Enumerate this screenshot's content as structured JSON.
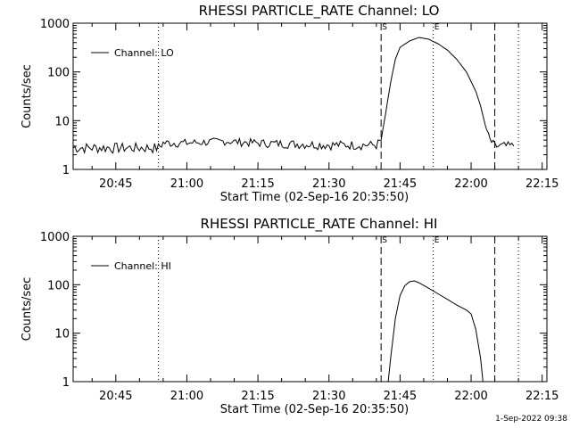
{
  "footer": {
    "timestamp": "1-Sep-2022 09:38"
  },
  "chart_data": [
    {
      "type": "line",
      "title": "RHESSI PARTICLE_RATE Channel: LO",
      "xlabel": "Start Time (02-Sep-16 20:35:50)",
      "ylabel": "Counts/sec",
      "yscale": "log",
      "ylim": [
        1,
        1000
      ],
      "xlim": [
        "20:36",
        "22:16"
      ],
      "x_ticks": [
        "20:45",
        "21:00",
        "21:15",
        "21:30",
        "21:45",
        "22:00",
        "22:15"
      ],
      "y_ticks": [
        "1",
        "10",
        "100",
        "1000"
      ],
      "legend": {
        "label": "Channel: LO",
        "placement": "top-left"
      },
      "markers": [
        {
          "label": "S",
          "time": "21:41",
          "style": "dashed"
        },
        {
          "label": "E",
          "time": "21:52",
          "style": "dotted"
        }
      ],
      "vlines": [
        {
          "time": "20:54",
          "style": "dotted"
        },
        {
          "time": "22:05",
          "style": "dashed"
        },
        {
          "time": "22:10",
          "style": "dotted"
        }
      ],
      "series": [
        {
          "pattern": "noisy",
          "points": [
            [
              "20:36",
              2.8
            ],
            [
              "20:54",
              2.8
            ],
            [
              "20:55",
              3.5
            ],
            [
              "21:00",
              3.5
            ],
            [
              "21:08",
              3.8
            ],
            [
              "21:15",
              3.5
            ],
            [
              "21:30",
              3.2
            ],
            [
              "21:40",
              3.2
            ],
            [
              "21:41",
              4
            ],
            [
              "21:42",
              15
            ],
            [
              "21:43",
              60
            ],
            [
              "21:44",
              180
            ],
            [
              "21:45",
              320
            ],
            [
              "21:47",
              430
            ],
            [
              "21:49",
              510
            ],
            [
              "21:51",
              470
            ],
            [
              "21:53",
              380
            ],
            [
              "21:55",
              280
            ],
            [
              "21:57",
              180
            ],
            [
              "21:59",
              100
            ],
            [
              "22:01",
              40
            ],
            [
              "22:02",
              20
            ],
            [
              "22:03",
              8
            ],
            [
              "22:04",
              4
            ],
            [
              "22:05",
              3
            ],
            [
              "22:09",
              3
            ]
          ]
        }
      ]
    },
    {
      "type": "line",
      "title": "RHESSI PARTICLE_RATE Channel: HI",
      "xlabel": "Start Time (02-Sep-16 20:35:50)",
      "ylabel": "Counts/sec",
      "yscale": "log",
      "ylim": [
        1,
        1000
      ],
      "xlim": [
        "20:36",
        "22:16"
      ],
      "x_ticks": [
        "20:45",
        "21:00",
        "21:15",
        "21:30",
        "21:45",
        "22:00",
        "22:15"
      ],
      "y_ticks": [
        "1",
        "10",
        "100",
        "1000"
      ],
      "legend": {
        "label": "Channel: HI",
        "placement": "top-left"
      },
      "markers": [
        {
          "label": "S",
          "time": "21:41",
          "style": "dashed"
        },
        {
          "label": "E",
          "time": "21:52",
          "style": "dotted"
        }
      ],
      "vlines": [
        {
          "time": "20:54",
          "style": "dotted"
        },
        {
          "time": "22:05",
          "style": "dashed"
        },
        {
          "time": "22:10",
          "style": "dotted"
        }
      ],
      "series": [
        {
          "pattern": "smooth",
          "points": [
            [
              "21:42.5",
              1
            ],
            [
              "21:43",
              3
            ],
            [
              "21:44",
              20
            ],
            [
              "21:45",
              60
            ],
            [
              "21:46",
              95
            ],
            [
              "21:47",
              115
            ],
            [
              "21:48",
              120
            ],
            [
              "21:49",
              110
            ],
            [
              "21:51",
              85
            ],
            [
              "21:53",
              65
            ],
            [
              "21:55",
              50
            ],
            [
              "21:57",
              38
            ],
            [
              "21:59",
              30
            ],
            [
              "22:00",
              25
            ],
            [
              "22:01",
              12
            ],
            [
              "22:02",
              3
            ],
            [
              "22:02.5",
              1
            ]
          ]
        }
      ]
    }
  ]
}
